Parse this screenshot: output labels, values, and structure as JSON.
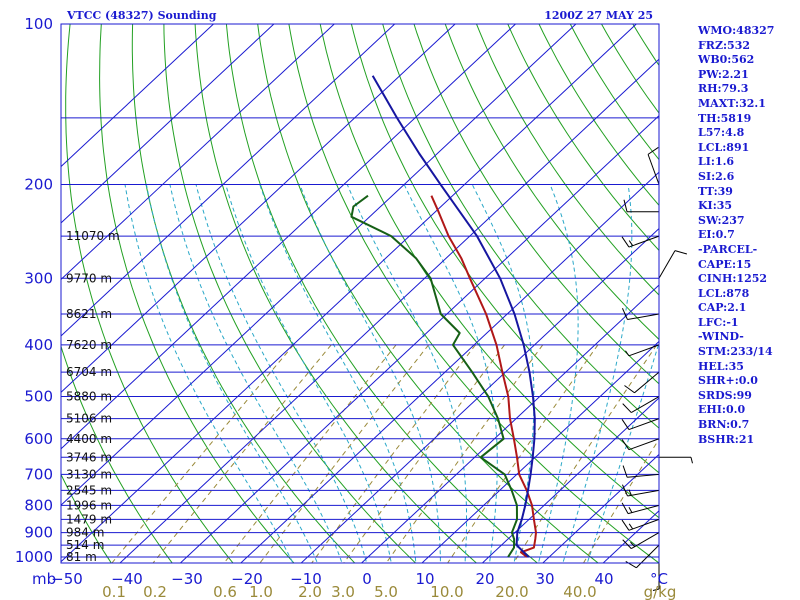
{
  "chart_data": {
    "type": "skew-t",
    "title": "VTCC (48327) Sounding",
    "time": "1200Z 27 MAY 25",
    "pressure_labels": [
      100,
      200,
      300,
      400,
      500,
      600,
      700,
      800,
      900,
      1000
    ],
    "temperature_ticks": [
      "−50",
      "−40",
      "−30",
      "−20",
      "−10",
      "0",
      "10",
      "20",
      "30",
      "40",
      "°C"
    ],
    "mixing_ratio_ticks": [
      "0.1",
      "0.2",
      "0.6",
      "1.0",
      "2.0",
      "3.0",
      "5.0",
      "10.0",
      "20.0",
      "40.0",
      "g/kg"
    ],
    "pressure_unit": "mb",
    "height_levels": [
      {
        "p": 250,
        "label": "11070 m"
      },
      {
        "p": 300,
        "label": "9770 m"
      },
      {
        "p": 350,
        "label": "8621 m"
      },
      {
        "p": 400,
        "label": "7620 m"
      },
      {
        "p": 450,
        "label": "6704 m"
      },
      {
        "p": 500,
        "label": "5880 m"
      },
      {
        "p": 550,
        "label": "5106 m"
      },
      {
        "p": 600,
        "label": "4400 m"
      },
      {
        "p": 650,
        "label": "3746 m"
      },
      {
        "p": 700,
        "label": "3130 m"
      },
      {
        "p": 750,
        "label": "2545 m"
      },
      {
        "p": 800,
        "label": "1996 m"
      },
      {
        "p": 850,
        "label": "1479 m"
      },
      {
        "p": 900,
        "label": "984 m"
      },
      {
        "p": 950,
        "label": "514 m"
      },
      {
        "p": 1000,
        "label": "81 m"
      }
    ],
    "series": [
      {
        "kind": "temperature",
        "color": "#b01818",
        "points": [
          [
            1000,
            26.3
          ],
          [
            980,
            24.5
          ],
          [
            960,
            25.8
          ],
          [
            925,
            24.5
          ],
          [
            900,
            23.5
          ],
          [
            850,
            20.8
          ],
          [
            800,
            18.0
          ],
          [
            750,
            14.5
          ],
          [
            700,
            10.4
          ],
          [
            650,
            7.0
          ],
          [
            600,
            3.2
          ],
          [
            550,
            -1.0
          ],
          [
            500,
            -5.2
          ],
          [
            450,
            -10.5
          ],
          [
            400,
            -16.3
          ],
          [
            350,
            -23.5
          ],
          [
            300,
            -32.5
          ],
          [
            275,
            -37.5
          ],
          [
            250,
            -43.5
          ],
          [
            225,
            -49.5
          ],
          [
            210,
            -53.5
          ]
        ]
      },
      {
        "kind": "dewpoint",
        "color": "#166016",
        "points": [
          [
            1000,
            23.2
          ],
          [
            960,
            22.5
          ],
          [
            925,
            21.0
          ],
          [
            900,
            19.5
          ],
          [
            850,
            18.0
          ],
          [
            800,
            15.5
          ],
          [
            750,
            12.0
          ],
          [
            700,
            8.0
          ],
          [
            650,
            1.0
          ],
          [
            600,
            1.5
          ],
          [
            550,
            -3.0
          ],
          [
            500,
            -8.5
          ],
          [
            450,
            -15.5
          ],
          [
            400,
            -23.5
          ],
          [
            380,
            -24.5
          ],
          [
            350,
            -31.0
          ],
          [
            300,
            -39.0
          ],
          [
            275,
            -45.0
          ],
          [
            250,
            -53.0
          ],
          [
            230,
            -63.0
          ],
          [
            220,
            -64.5
          ],
          [
            210,
            -64.0
          ]
        ]
      },
      {
        "kind": "parcel",
        "color": "#1616a0",
        "points": [
          [
            1000,
            26.6
          ],
          [
            950,
            22.5
          ],
          [
            900,
            20.4
          ],
          [
            878,
            19.7
          ],
          [
            850,
            18.8
          ],
          [
            800,
            16.9
          ],
          [
            750,
            14.7
          ],
          [
            700,
            12.3
          ],
          [
            650,
            9.6
          ],
          [
            600,
            6.6
          ],
          [
            550,
            3.1
          ],
          [
            500,
            -1.1
          ],
          [
            450,
            -6.0
          ],
          [
            400,
            -11.8
          ],
          [
            350,
            -18.8
          ],
          [
            300,
            -27.5
          ],
          [
            250,
            -38.8
          ],
          [
            200,
            -54.0
          ],
          [
            175,
            -63.0
          ],
          [
            150,
            -73.0
          ],
          [
            125,
            -84.5
          ]
        ]
      }
    ],
    "wind_barbs": [
      {
        "p": 1000,
        "dir": 180,
        "spd": 5
      },
      {
        "p": 950,
        "dir": 225,
        "spd": 10
      },
      {
        "p": 900,
        "dir": 240,
        "spd": 15
      },
      {
        "p": 850,
        "dir": 250,
        "spd": 15
      },
      {
        "p": 800,
        "dir": 255,
        "spd": 15
      },
      {
        "p": 750,
        "dir": 260,
        "spd": 15
      },
      {
        "p": 700,
        "dir": 265,
        "spd": 10
      },
      {
        "p": 650,
        "dir": 90,
        "spd": 5
      },
      {
        "p": 600,
        "dir": 250,
        "spd": 10
      },
      {
        "p": 550,
        "dir": 250,
        "spd": 10
      },
      {
        "p": 500,
        "dir": 240,
        "spd": 10
      },
      {
        "p": 450,
        "dir": 230,
        "spd": 10
      },
      {
        "p": 400,
        "dir": 250,
        "spd": 5
      },
      {
        "p": 350,
        "dir": 260,
        "spd": 10
      },
      {
        "p": 300,
        "dir": 30,
        "spd": 10
      },
      {
        "p": 250,
        "dir": 250,
        "spd": 15
      },
      {
        "p": 225,
        "dir": 270,
        "spd": 10
      },
      {
        "p": 200,
        "dir": 340,
        "spd": 10
      }
    ],
    "colors": {
      "frame": "#1a1ad0",
      "isotherm": "#1a1ad0",
      "dry_adiabat": "#22a022",
      "moist_adiabat": "#2aa8c8",
      "mixing_ratio": "#9a8a3a",
      "isobar": "#1a1ad0"
    }
  },
  "indices": [
    "WMO:48327",
    "FRZ:532",
    "WB0:562",
    "PW:2.21",
    "RH:79.3",
    "MAXT:32.1",
    "TH:5819",
    "L57:4.8",
    "LCL:891",
    "LI:1.6",
    "SI:2.6",
    "TT:39",
    "KI:35",
    "SW:237",
    "EI:0.7",
    "-PARCEL-",
    "CAPE:15",
    "CINH:1252",
    "LCL:878",
    "CAP:2.1",
    "LFC:-1",
    "-WIND-",
    "STM:233/14",
    "HEL:35",
    "SHR+:0.0",
    "SRDS:99",
    "EHI:0.0",
    "BRN:0.7",
    "BSHR:21"
  ]
}
